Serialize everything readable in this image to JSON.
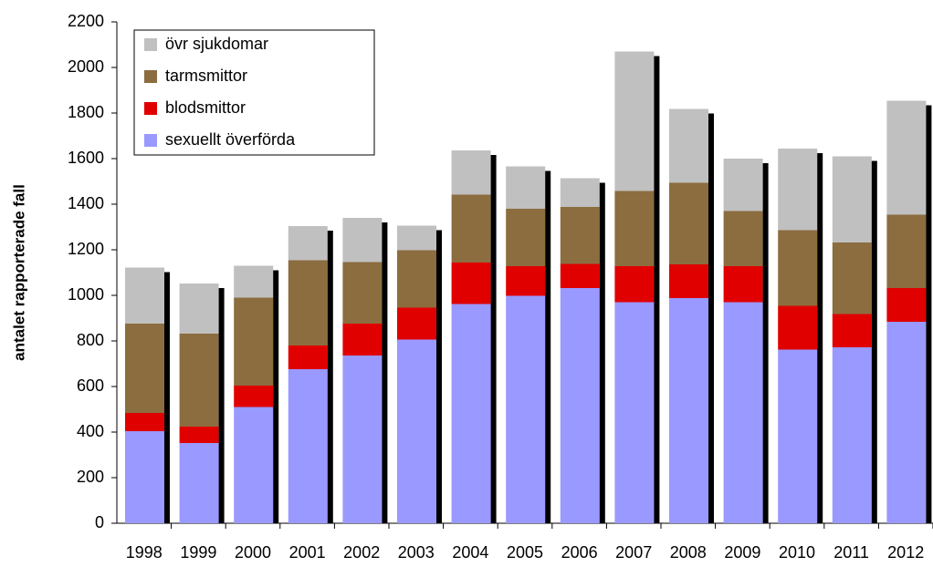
{
  "chart_data": {
    "type": "stacked_bar",
    "ylabel": "antalet rapporterade fall",
    "categories": [
      "1998",
      "1999",
      "2000",
      "2001",
      "2002",
      "2003",
      "2004",
      "2005",
      "2006",
      "2007",
      "2008",
      "2009",
      "2010",
      "2011",
      "2012"
    ],
    "series": [
      {
        "name": "sexuellt överförda",
        "color": "#9999ff",
        "values": [
          404,
          352,
          510,
          676,
          736,
          806,
          962,
          998,
          1032,
          970,
          988,
          970,
          762,
          772,
          884
        ]
      },
      {
        "name": "blodsmittor",
        "color": "#e00000",
        "values": [
          80,
          72,
          94,
          104,
          140,
          140,
          182,
          130,
          106,
          158,
          148,
          158,
          192,
          146,
          148
        ]
      },
      {
        "name": "tarmsmittor",
        "color": "#8c6d3f",
        "values": [
          392,
          408,
          386,
          374,
          270,
          252,
          298,
          252,
          250,
          330,
          358,
          242,
          332,
          314,
          322
        ]
      },
      {
        "name": "övr sjukdomar",
        "color": "#c0c0c0",
        "values": [
          246,
          220,
          140,
          150,
          194,
          108,
          194,
          186,
          126,
          612,
          324,
          230,
          358,
          378,
          500
        ]
      }
    ],
    "ylim": [
      0,
      2200
    ],
    "yticks": [
      0,
      200,
      400,
      600,
      800,
      1000,
      1200,
      1400,
      1600,
      1800,
      2000,
      2200
    ],
    "legend": "upper left"
  }
}
